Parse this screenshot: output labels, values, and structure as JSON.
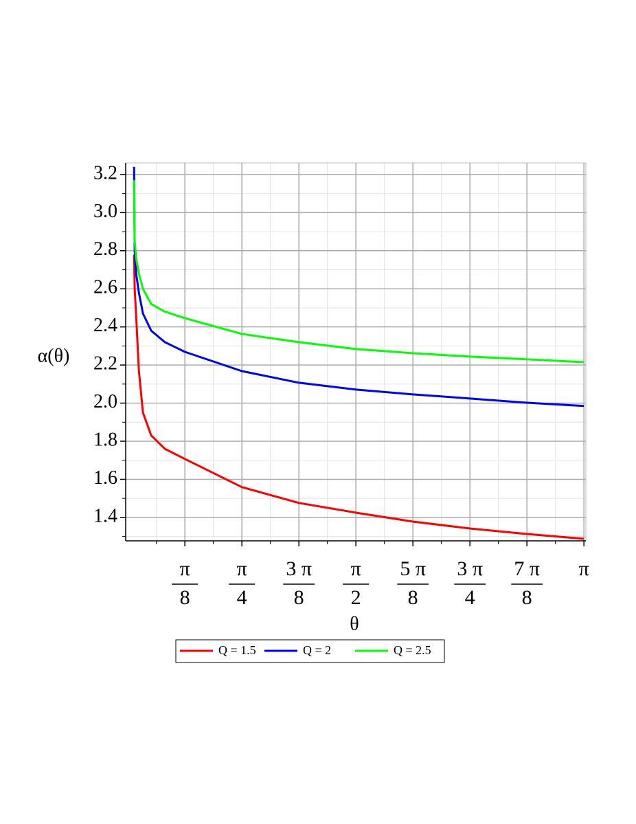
{
  "chart_data": {
    "type": "line",
    "xlabel": "θ",
    "ylabel": "α(θ)",
    "x": [
      0.043,
      0.047,
      0.057,
      0.076,
      0.104,
      0.161,
      0.255,
      0.3927,
      0.7854,
      1.1781,
      1.5708,
      1.9635,
      2.3562,
      2.7489,
      3.1416
    ],
    "series": [
      {
        "name": "Q = 1.5",
        "color": "#ff0000",
        "values": [
          2.78,
          2.6,
          2.46,
          2.17,
          1.95,
          1.83,
          1.76,
          1.707,
          1.559,
          1.476,
          1.425,
          1.378,
          1.342,
          1.313,
          1.288
        ]
      },
      {
        "name": "Q = 2",
        "color": "#0000ff",
        "values": [
          3.24,
          2.8,
          2.68,
          2.58,
          2.47,
          2.38,
          2.32,
          2.269,
          2.168,
          2.107,
          2.071,
          2.046,
          2.024,
          2.002,
          1.985
        ]
      },
      {
        "name": "Q = 2.5",
        "color": "#00ff00",
        "values": [
          3.17,
          2.85,
          2.76,
          2.68,
          2.6,
          2.52,
          2.48,
          2.446,
          2.363,
          2.32,
          2.284,
          2.262,
          2.244,
          2.23,
          2.215
        ]
      }
    ],
    "xlim": [
      -0.015,
      3.155
    ],
    "xticks": [
      {
        "value": 0.3927,
        "label": "π/8"
      },
      {
        "value": 0.7854,
        "label": "π/4"
      },
      {
        "value": 1.1781,
        "label": "3 π/8"
      },
      {
        "value": 1.5708,
        "label": "π/2"
      },
      {
        "value": 1.9635,
        "label": "5 π/8"
      },
      {
        "value": 2.3562,
        "label": "3 π/4"
      },
      {
        "value": 2.7489,
        "label": "7 π/8"
      },
      {
        "value": 3.1416,
        "label": "π"
      }
    ],
    "ylim": [
      1.277,
      3.261
    ],
    "yticks": [
      1.4,
      1.6,
      1.8,
      {
        "value": 2.0,
        "label": "2.0"
      },
      2.2,
      2.4,
      2.6,
      2.8,
      {
        "value": 3.0,
        "label": "3.0"
      },
      3.2
    ],
    "grid": true,
    "legend": "bottom"
  }
}
